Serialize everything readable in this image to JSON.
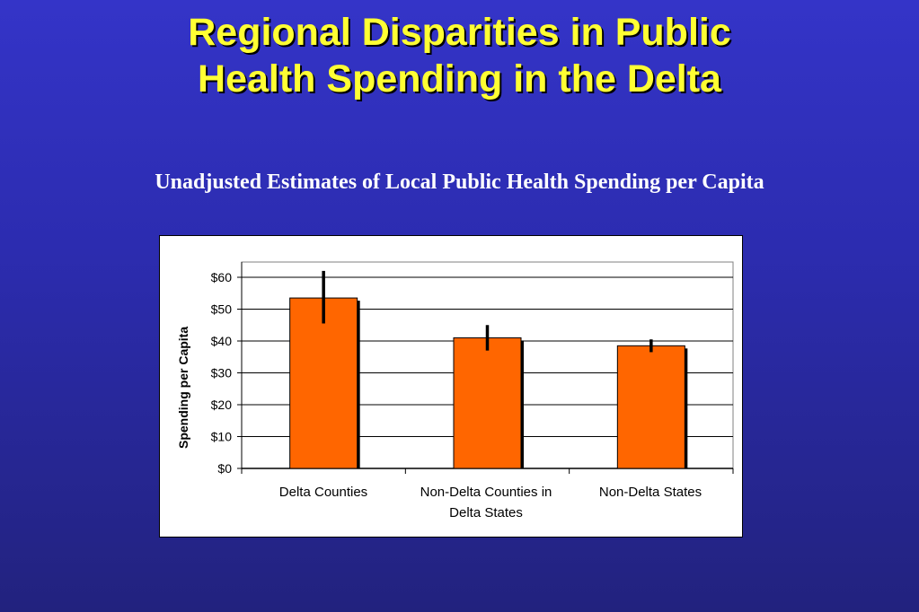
{
  "slide": {
    "title_line1": "Regional Disparities in Public",
    "title_line2": "Health Spending in the Delta",
    "subtitle": "Unadjusted Estimates of Local Public Health Spending per Capita"
  },
  "colors": {
    "bar": "#ff6600",
    "title": "#ffff33",
    "background": "#2c2cb0"
  },
  "chart_data": {
    "type": "bar",
    "categories": [
      "Delta Counties",
      "Non-Delta Counties in Delta States",
      "Non-Delta States"
    ],
    "values": [
      53.5,
      41,
      38.5
    ],
    "error_low": [
      45.5,
      37,
      36.5
    ],
    "error_high": [
      62,
      45,
      40.5
    ],
    "ylabel": "Spending per Capita",
    "ylim": [
      0,
      60
    ],
    "yticks": [
      0,
      10,
      20,
      30,
      40,
      50,
      60
    ],
    "ytick_labels": [
      "$0",
      "$10",
      "$20",
      "$30",
      "$40",
      "$50",
      "$60"
    ],
    "grid": true,
    "legend": "none"
  }
}
